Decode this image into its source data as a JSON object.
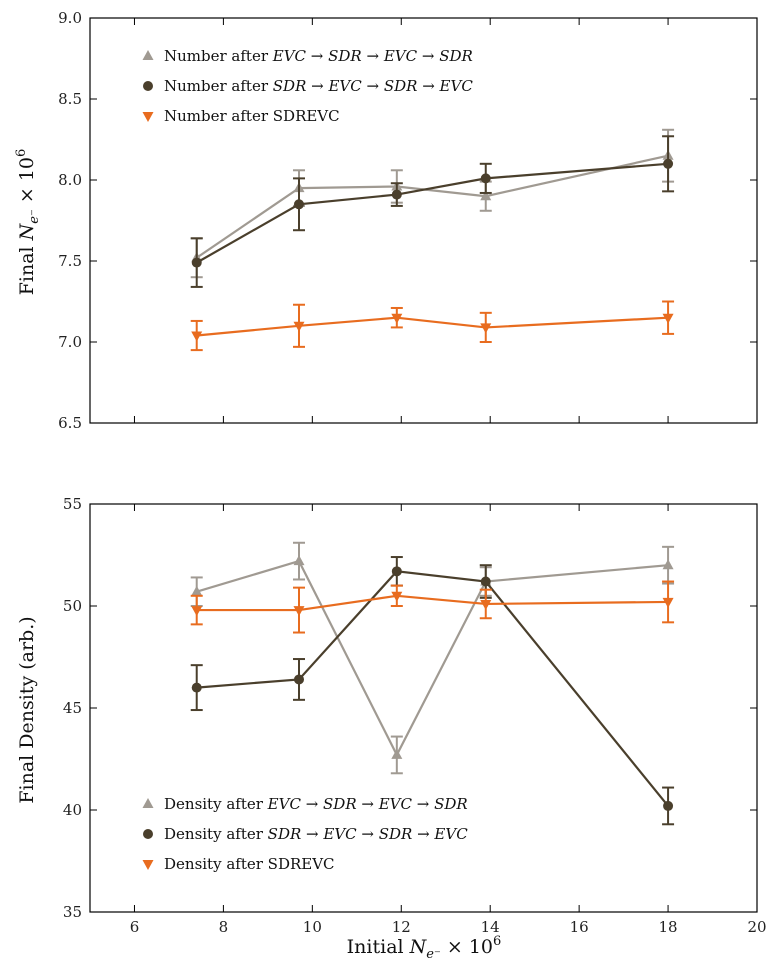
{
  "chart_data": [
    {
      "type": "line",
      "xlim": [
        5,
        20
      ],
      "ylim": [
        6.5,
        9.0
      ],
      "x_ticks": [
        "6",
        "8",
        "10",
        "12",
        "14",
        "16",
        "18",
        "20"
      ],
      "y_ticks": [
        "6.5",
        "7.0",
        "7.5",
        "8.0",
        "8.5",
        "9.0"
      ],
      "ylabel": "Final N_{e^-} × 10^6",
      "ylabel_parts": {
        "prefix": "Final ",
        "symbol": "N",
        "subscript": "e⁻",
        "suffix": " × 10",
        "exponent": "6"
      },
      "legend_position": "upper-left",
      "series": [
        {
          "name": "Number after EVC → SDR → EVC → SDR",
          "name_parts": {
            "plain": "Number after ",
            "math": "EVC → SDR → EVC → SDR"
          },
          "color": "#a09a92",
          "marker": "triangle-up",
          "x": [
            7.4,
            9.7,
            11.9,
            13.9,
            18.0
          ],
          "y": [
            7.52,
            7.95,
            7.96,
            7.9,
            8.15
          ],
          "yerr": [
            0.12,
            0.11,
            0.1,
            0.09,
            0.16
          ]
        },
        {
          "name": "Number after SDR → EVC → SDR → EVC",
          "name_parts": {
            "plain": "Number after ",
            "math": "SDR → EVC → SDR → EVC"
          },
          "color": "#4a3f2c",
          "marker": "circle",
          "x": [
            7.4,
            9.7,
            11.9,
            13.9,
            18.0
          ],
          "y": [
            7.49,
            7.85,
            7.91,
            8.01,
            8.1
          ],
          "yerr": [
            0.15,
            0.16,
            0.07,
            0.09,
            0.17
          ]
        },
        {
          "name": "Number after SDREVC",
          "name_parts": {
            "plain": "Number after SDREVC",
            "math": ""
          },
          "color": "#e86c1f",
          "marker": "triangle-down",
          "x": [
            7.4,
            9.7,
            11.9,
            13.9,
            18.0
          ],
          "y": [
            7.04,
            7.1,
            7.15,
            7.09,
            7.15
          ],
          "yerr": [
            0.09,
            0.13,
            0.06,
            0.09,
            0.1
          ]
        }
      ]
    },
    {
      "type": "line",
      "xlim": [
        5,
        20
      ],
      "ylim": [
        35,
        55
      ],
      "x_ticks": [
        "6",
        "8",
        "10",
        "12",
        "14",
        "16",
        "18",
        "20"
      ],
      "y_ticks": [
        "35",
        "40",
        "45",
        "50",
        "55"
      ],
      "ylabel": "Final Density (arb.)",
      "xlabel": "Initial N_{e^-} × 10^6",
      "xlabel_parts": {
        "prefix": "Initial ",
        "symbol": "N",
        "subscript": "e⁻",
        "suffix": " × 10",
        "exponent": "6"
      },
      "legend_position": "lower-left",
      "series": [
        {
          "name": "Density after EVC → SDR → EVC → SDR",
          "name_parts": {
            "plain": "Density after ",
            "math": "EVC → SDR → EVC → SDR"
          },
          "color": "#a09a92",
          "marker": "triangle-up",
          "x": [
            7.4,
            9.7,
            11.9,
            13.9,
            18.0
          ],
          "y": [
            50.7,
            52.2,
            42.7,
            51.2,
            52.0
          ],
          "yerr": [
            0.7,
            0.9,
            0.9,
            0.7,
            0.9
          ]
        },
        {
          "name": "Density after SDR → EVC → SDR → EVC",
          "name_parts": {
            "plain": "Density after ",
            "math": "SDR → EVC → SDR → EVC"
          },
          "color": "#4a3f2c",
          "marker": "circle",
          "x": [
            7.4,
            9.7,
            11.9,
            13.9,
            18.0
          ],
          "y": [
            46.0,
            46.4,
            51.7,
            51.2,
            40.2
          ],
          "yerr": [
            1.1,
            1.0,
            0.7,
            0.8,
            0.9
          ]
        },
        {
          "name": "Density after SDREVC",
          "name_parts": {
            "plain": "Density after SDREVC",
            "math": ""
          },
          "color": "#e86c1f",
          "marker": "triangle-down",
          "x": [
            7.4,
            9.7,
            11.9,
            13.9,
            18.0
          ],
          "y": [
            49.8,
            49.8,
            50.5,
            50.1,
            50.2
          ],
          "yerr": [
            0.7,
            1.1,
            0.5,
            0.7,
            1.0
          ]
        }
      ]
    }
  ]
}
